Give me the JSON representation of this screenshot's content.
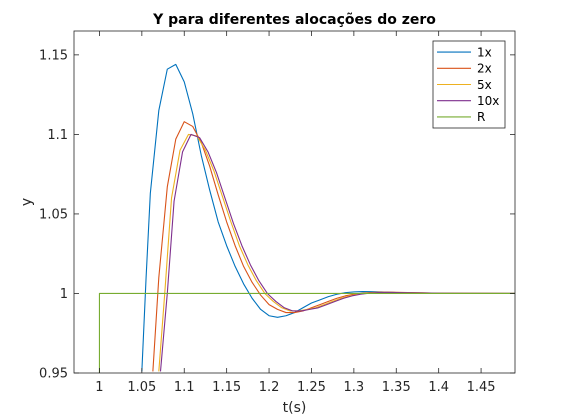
{
  "chart_data": {
    "type": "line",
    "title": "Y para diferentes alocações do zero",
    "xlabel": "t(s)",
    "ylabel": "y",
    "xlim": [
      0.97,
      1.49
    ],
    "ylim": [
      0.95,
      1.165
    ],
    "xticks": [
      1,
      1.05,
      1.1,
      1.15,
      1.2,
      1.25,
      1.3,
      1.35,
      1.4,
      1.45
    ],
    "xtick_labels": [
      "1",
      "1.05",
      "1.1",
      "1.15",
      "1.2",
      "1.25",
      "1.3",
      "1.35",
      "1.4",
      "1.45"
    ],
    "yticks": [
      0.95,
      1,
      1.05,
      1.1,
      1.15
    ],
    "ytick_labels": [
      "0.95",
      "1",
      "1.05",
      "1.1",
      "1.15"
    ],
    "grid": false,
    "legend_position": "top-right",
    "series": [
      {
        "name": "1x",
        "color": "#0072BD",
        "x": [
          1.05,
          1.055,
          1.06,
          1.07,
          1.08,
          1.09,
          1.1,
          1.11,
          1.12,
          1.13,
          1.14,
          1.15,
          1.16,
          1.17,
          1.18,
          1.19,
          1.2,
          1.21,
          1.22,
          1.23,
          1.24,
          1.25,
          1.26,
          1.27,
          1.28,
          1.29,
          1.3,
          1.31,
          1.32,
          1.33,
          1.34,
          1.35,
          1.36,
          1.38,
          1.4,
          1.42,
          1.45,
          1.49
        ],
        "values": [
          0.951,
          1.01,
          1.063,
          1.115,
          1.141,
          1.144,
          1.133,
          1.113,
          1.087,
          1.065,
          1.045,
          1.03,
          1.017,
          1.006,
          0.997,
          0.99,
          0.986,
          0.985,
          0.986,
          0.988,
          0.991,
          0.994,
          0.996,
          0.998,
          0.9995,
          1.0005,
          1.001,
          1.0012,
          1.0011,
          1.001,
          1.0008,
          1.0006,
          1.0004,
          1.0002,
          1.0001,
          1.0,
          1.0,
          1.0
        ]
      },
      {
        "name": "2x",
        "color": "#D95319",
        "x": [
          1.063,
          1.07,
          1.08,
          1.09,
          1.1,
          1.11,
          1.12,
          1.13,
          1.14,
          1.15,
          1.16,
          1.17,
          1.18,
          1.19,
          1.2,
          1.21,
          1.22,
          1.23,
          1.24,
          1.25,
          1.26,
          1.27,
          1.28,
          1.29,
          1.3,
          1.31,
          1.32,
          1.33,
          1.34,
          1.35,
          1.37,
          1.4,
          1.43,
          1.49
        ],
        "values": [
          0.951,
          1.01,
          1.067,
          1.097,
          1.108,
          1.105,
          1.095,
          1.08,
          1.062,
          1.045,
          1.03,
          1.017,
          1.007,
          0.999,
          0.993,
          0.99,
          0.988,
          0.988,
          0.989,
          0.991,
          0.993,
          0.995,
          0.997,
          0.9985,
          0.9995,
          1.0002,
          1.0006,
          1.0008,
          1.0008,
          1.0007,
          1.0005,
          1.0002,
          1.0001,
          1.0
        ]
      },
      {
        "name": "5x",
        "color": "#EDB120",
        "x": [
          1.07,
          1.077,
          1.085,
          1.095,
          1.105,
          1.115,
          1.125,
          1.135,
          1.145,
          1.155,
          1.165,
          1.175,
          1.185,
          1.195,
          1.205,
          1.215,
          1.225,
          1.235,
          1.245,
          1.255,
          1.265,
          1.275,
          1.285,
          1.295,
          1.305,
          1.315,
          1.325,
          1.335,
          1.35,
          1.37,
          1.4,
          1.43,
          1.49
        ],
        "values": [
          0.951,
          1.0,
          1.06,
          1.09,
          1.1,
          1.099,
          1.09,
          1.077,
          1.061,
          1.045,
          1.03,
          1.018,
          1.008,
          1.0,
          0.995,
          0.991,
          0.989,
          0.989,
          0.99,
          0.991,
          0.993,
          0.995,
          0.997,
          0.9985,
          0.9995,
          1.0002,
          1.0006,
          1.0007,
          1.0006,
          1.0004,
          1.0002,
          1.0001,
          1.0
        ]
      },
      {
        "name": "10x",
        "color": "#7E2F8E",
        "x": [
          1.072,
          1.08,
          1.088,
          1.098,
          1.108,
          1.118,
          1.128,
          1.138,
          1.148,
          1.158,
          1.168,
          1.178,
          1.188,
          1.198,
          1.208,
          1.218,
          1.228,
          1.238,
          1.248,
          1.258,
          1.268,
          1.278,
          1.288,
          1.298,
          1.308,
          1.318,
          1.328,
          1.338,
          1.35,
          1.37,
          1.4,
          1.43,
          1.49
        ],
        "values": [
          0.951,
          1.0,
          1.058,
          1.089,
          1.1,
          1.098,
          1.089,
          1.076,
          1.06,
          1.044,
          1.03,
          1.018,
          1.008,
          1.0,
          0.995,
          0.991,
          0.989,
          0.989,
          0.99,
          0.991,
          0.993,
          0.995,
          0.997,
          0.9985,
          0.9995,
          1.0002,
          1.0006,
          1.0007,
          1.0006,
          1.0004,
          1.0002,
          1.0001,
          1.0
        ]
      },
      {
        "name": "R",
        "color": "#77AC30",
        "x": [
          1.0,
          1.0,
          1.49
        ],
        "values": [
          0.95,
          1.0,
          1.0
        ]
      }
    ]
  }
}
